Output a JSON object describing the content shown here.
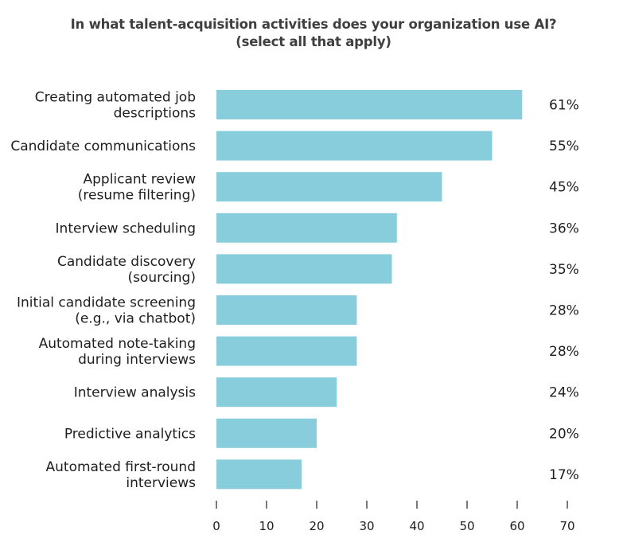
{
  "chart_data": {
    "type": "bar",
    "orientation": "horizontal",
    "title_lines": [
      "In what talent-acquisition activities does your organization use AI?",
      "(select all that apply)"
    ],
    "categories": [
      [
        "Creating automated job",
        "descriptions"
      ],
      [
        "Candidate communications"
      ],
      [
        "Applicant review",
        "(resume filtering)"
      ],
      [
        "Interview scheduling"
      ],
      [
        "Candidate discovery",
        "(sourcing)"
      ],
      [
        "Initial candidate screening",
        "(e.g., via chatbot)"
      ],
      [
        "Automated note-taking",
        "during interviews"
      ],
      [
        "Interview analysis"
      ],
      [
        "Predictive analytics"
      ],
      [
        "Automated first-round",
        "interviews"
      ]
    ],
    "values": [
      61,
      55,
      45,
      36,
      35,
      28,
      28,
      24,
      20,
      17
    ],
    "value_labels": [
      "61%",
      "55%",
      "45%",
      "36%",
      "35%",
      "28%",
      "28%",
      "24%",
      "20%",
      "17%"
    ],
    "xlim": [
      0,
      70
    ],
    "xticks": [
      0,
      10,
      20,
      30,
      40,
      50,
      60,
      70
    ],
    "xlabel": "",
    "ylabel": "",
    "grid": false,
    "legend": "none",
    "bar_color": "#88cddb"
  }
}
